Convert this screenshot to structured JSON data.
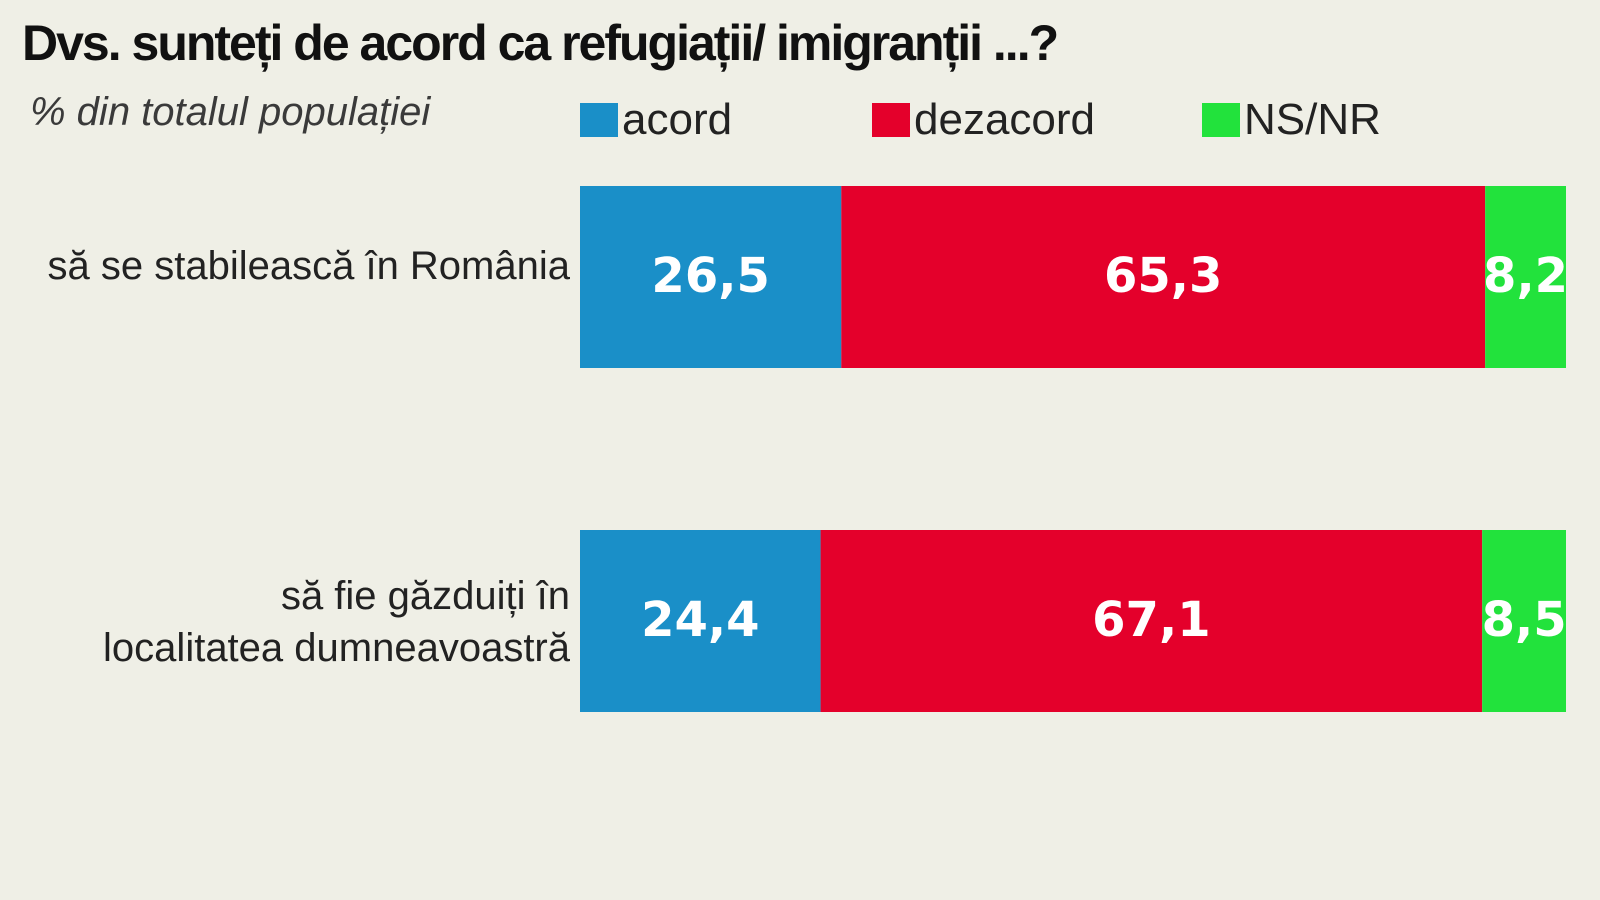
{
  "chart_data": {
    "type": "bar",
    "orientation": "horizontal",
    "stacked": true,
    "title": "Dvs. sunteți de acord ca refugiații/ imigranții ...?",
    "subtitle": "% din totalul populației",
    "categories": [
      [
        "să se stabilească în România"
      ],
      [
        "să fie găzduiți în",
        "localitatea dumneavoastră"
      ]
    ],
    "series": [
      {
        "name": "acord",
        "color": "#1a8fc8",
        "values": [
          26.5,
          24.4
        ],
        "labels": [
          "26,5",
          "24,4"
        ]
      },
      {
        "name": "dezacord",
        "color": "#e4002b",
        "values": [
          65.3,
          67.1
        ],
        "labels": [
          "65,3",
          "67,1"
        ]
      },
      {
        "name": "NS/NR",
        "color": "#22e23c",
        "values": [
          8.2,
          8.5
        ],
        "labels": [
          "8,2",
          "8,5"
        ]
      }
    ],
    "xlim": [
      0,
      100
    ],
    "legend": "top",
    "grid": false
  }
}
